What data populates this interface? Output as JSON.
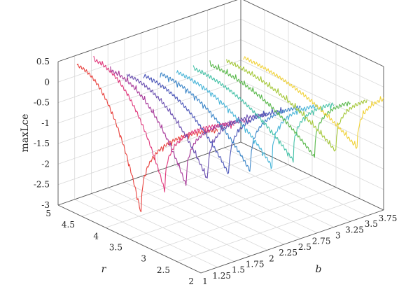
{
  "chart_data": {
    "type": "line3d",
    "title": "",
    "zlabel": "maxLce",
    "xlabel": "b",
    "ylabel": "r",
    "b_ticks": [
      "1",
      "1.25",
      "1.5",
      "1.75",
      "2",
      "2.25",
      "2.5",
      "2.75",
      "3",
      "3.25",
      "3.5",
      "3.75"
    ],
    "r_ticks": [
      "2",
      "2.5",
      "3",
      "3.5",
      "4",
      "4.5",
      "5"
    ],
    "z_ticks": [
      "0.5",
      "0",
      "-0.5",
      "-1",
      "-1.5",
      "-2",
      "-2.5",
      "-3"
    ],
    "b_range": [
      1,
      3.75
    ],
    "r_range": [
      2,
      5
    ],
    "z_range": [
      -3,
      0.5
    ],
    "grid": true,
    "series": [
      {
        "b": 1.25,
        "color": "#e8433f",
        "r_min": 4.95,
        "z_start": 0.3,
        "dip_r": 3.6,
        "dip_z": -2.6,
        "z_end": 0.35
      },
      {
        "b": 1.5,
        "color": "#e0387c",
        "r_min": 4.95,
        "z_start": 0.3,
        "dip_r": 3.45,
        "dip_z": -2.1,
        "z_end": 0.35
      },
      {
        "b": 1.75,
        "color": "#a83a9a",
        "r_min": 4.95,
        "z_start": -0.1,
        "dip_r": 3.35,
        "dip_z": -2.05,
        "z_end": 0.3
      },
      {
        "b": 2.0,
        "color": "#6a4fb0",
        "r_min": 4.95,
        "z_start": -0.35,
        "dip_r": 3.25,
        "dip_z": -2.0,
        "z_end": 0.3
      },
      {
        "b": 2.25,
        "color": "#4a55b8",
        "r_min": 4.95,
        "z_start": -0.5,
        "dip_r": 3.15,
        "dip_z": -1.95,
        "z_end": 0.25
      },
      {
        "b": 2.5,
        "color": "#3d86c8",
        "r_min": 4.95,
        "z_start": -0.6,
        "dip_r": 3.05,
        "dip_z": -1.95,
        "z_end": 0.2
      },
      {
        "b": 2.75,
        "color": "#49b5d8",
        "r_min": 4.95,
        "z_start": -0.7,
        "dip_r": 2.95,
        "dip_z": -1.9,
        "z_end": 0.1
      },
      {
        "b": 3.0,
        "color": "#47c2a8",
        "r_min": 4.95,
        "z_start": -0.75,
        "dip_r": 2.85,
        "dip_z": -1.85,
        "z_end": 0.0
      },
      {
        "b": 3.25,
        "color": "#59b84b",
        "r_min": 4.95,
        "z_start": -0.8,
        "dip_r": 2.75,
        "dip_z": -1.85,
        "z_end": -0.1
      },
      {
        "b": 3.5,
        "color": "#a5c83a",
        "r_min": 4.95,
        "z_start": -0.85,
        "dip_r": 2.65,
        "dip_z": -1.8,
        "z_end": -0.2
      },
      {
        "b": 3.75,
        "color": "#f0d23a",
        "r_min": 4.95,
        "z_start": -0.9,
        "dip_r": 2.55,
        "dip_z": -1.8,
        "z_end": -0.3
      }
    ]
  }
}
